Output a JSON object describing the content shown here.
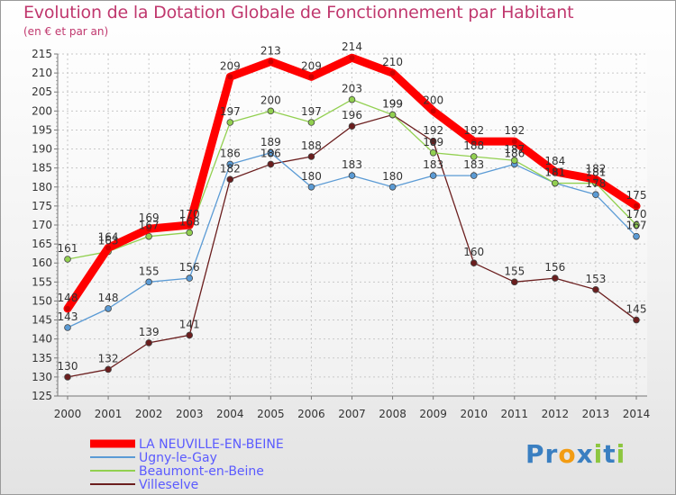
{
  "chart_data": {
    "type": "line",
    "title": "Evolution de la Dotation Globale de Fonctionnement par Habitant",
    "subtitle": "(en € et par an)",
    "xlabel": "",
    "ylabel": "",
    "ylim": [
      125,
      215
    ],
    "y_ticks": [
      125,
      130,
      135,
      140,
      145,
      150,
      155,
      160,
      165,
      170,
      175,
      180,
      185,
      190,
      195,
      200,
      205,
      210,
      215
    ],
    "x": [
      "2000",
      "2001",
      "2002",
      "2003",
      "2004",
      "2005",
      "2006",
      "2007",
      "2008",
      "2009",
      "2010",
      "2011",
      "2012",
      "2013",
      "2014"
    ],
    "series": [
      {
        "name": "LA NEUVILLE-EN-BEINE",
        "color": "#ff0000",
        "values": [
          148,
          164,
          169,
          170,
          209,
          213,
          209,
          214,
          210,
          200,
          192,
          192,
          184,
          182,
          175
        ]
      },
      {
        "name": "Ugny-le-Gay",
        "color": "#5b9bd5",
        "values": [
          143,
          148,
          155,
          156,
          186,
          189,
          180,
          183,
          180,
          183,
          183,
          186,
          181,
          178,
          167
        ]
      },
      {
        "name": "Beaumont-en-Beine",
        "color": "#92d050",
        "values": [
          161,
          163,
          167,
          168,
          197,
          200,
          197,
          203,
          199,
          189,
          188,
          187,
          181,
          181,
          170
        ]
      },
      {
        "name": "Villeselve",
        "color": "#6b1e1e",
        "values": [
          130,
          132,
          139,
          141,
          182,
          186,
          188,
          196,
          199,
          192,
          160,
          155,
          156,
          153,
          145
        ]
      }
    ]
  },
  "brand": {
    "letters": [
      "P",
      "r",
      "o",
      "x",
      "i",
      "t",
      "i"
    ],
    "colors": [
      "#3a7fc1",
      "#3a7fc1",
      "#f39c12",
      "#3a7fc1",
      "#8dc63f",
      "#3a7fc1",
      "#8dc63f"
    ]
  }
}
